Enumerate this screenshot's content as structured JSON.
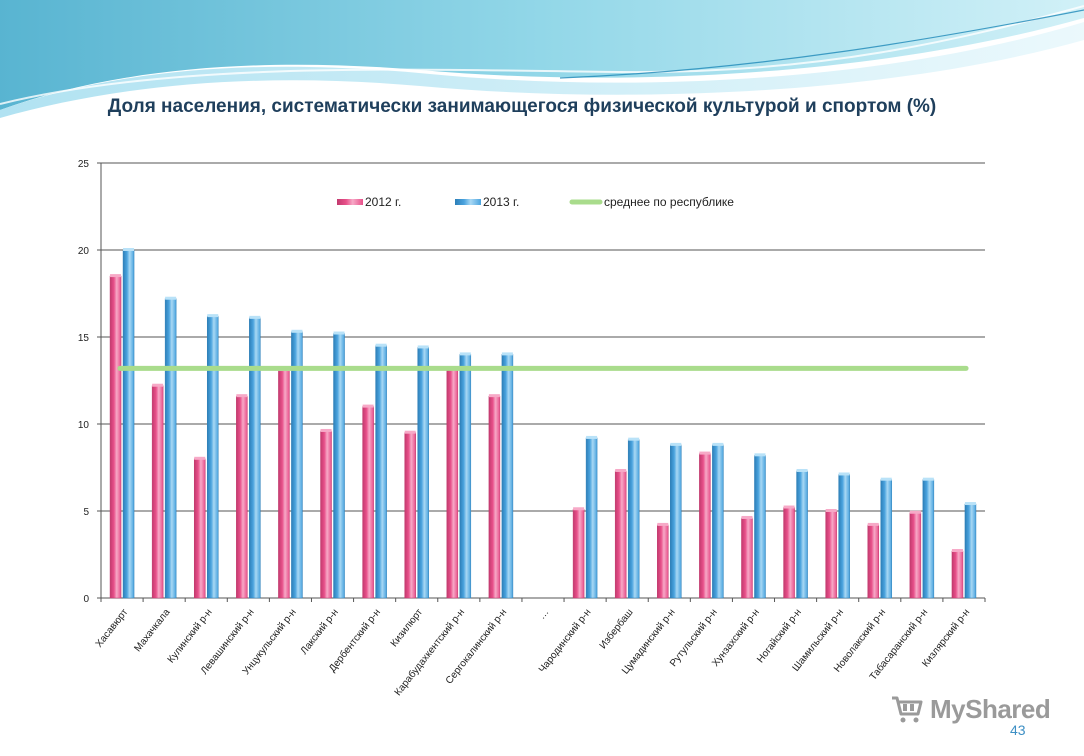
{
  "colors": {
    "bar_2012": "#e8508a",
    "bar_2013": "#4aa3de",
    "average_line": "#a9dc8c",
    "title": "#1f3f5c",
    "page_number": "#3d8fc4"
  },
  "slide": {
    "page_number": "43",
    "watermark": "MyShared"
  },
  "chart_data": {
    "type": "bar",
    "title": "Доля населения, систематически занимающегося физической культурой и спортом (%)",
    "xlabel": "",
    "ylabel": "",
    "ylim": [
      0,
      25
    ],
    "yticks": [
      0,
      5,
      10,
      15,
      20,
      25
    ],
    "grid": true,
    "legend_position": "top",
    "categories": [
      "Хасавюрт",
      "Махачкала",
      "Кулинский р-н",
      "Левашинский р-н",
      "Унцукульский р-н",
      "Лакский р-н",
      "Дербентский р-н",
      "Кизилюрт",
      "Карабудахкентский р-н",
      "Сергокалинский р-н",
      "…",
      "Чародинский р-н",
      "Избербаш",
      "Цумадинский р-н",
      "Рутульский р-н",
      "Хунзахский р-н",
      "Ногайский р-н",
      "Шамильский р-н",
      "Новолакский р-н",
      "Табасаранский р-н",
      "Кизлярский р-н"
    ],
    "series": [
      {
        "name": "2012 г.",
        "values": [
          18.5,
          12.2,
          8.0,
          11.6,
          13.1,
          9.6,
          11.0,
          9.5,
          13.2,
          11.6,
          null,
          5.1,
          7.3,
          4.2,
          8.3,
          4.6,
          5.2,
          5.0,
          4.2,
          4.9,
          2.7
        ]
      },
      {
        "name": "2013 г.",
        "values": [
          20.0,
          17.2,
          16.2,
          16.1,
          15.3,
          15.2,
          14.5,
          14.4,
          14.0,
          14.0,
          null,
          9.2,
          9.1,
          8.8,
          8.8,
          8.2,
          7.3,
          7.1,
          6.8,
          6.8,
          5.4
        ]
      }
    ],
    "average_line": {
      "name": "среднее по республике",
      "value": 13.2
    }
  }
}
